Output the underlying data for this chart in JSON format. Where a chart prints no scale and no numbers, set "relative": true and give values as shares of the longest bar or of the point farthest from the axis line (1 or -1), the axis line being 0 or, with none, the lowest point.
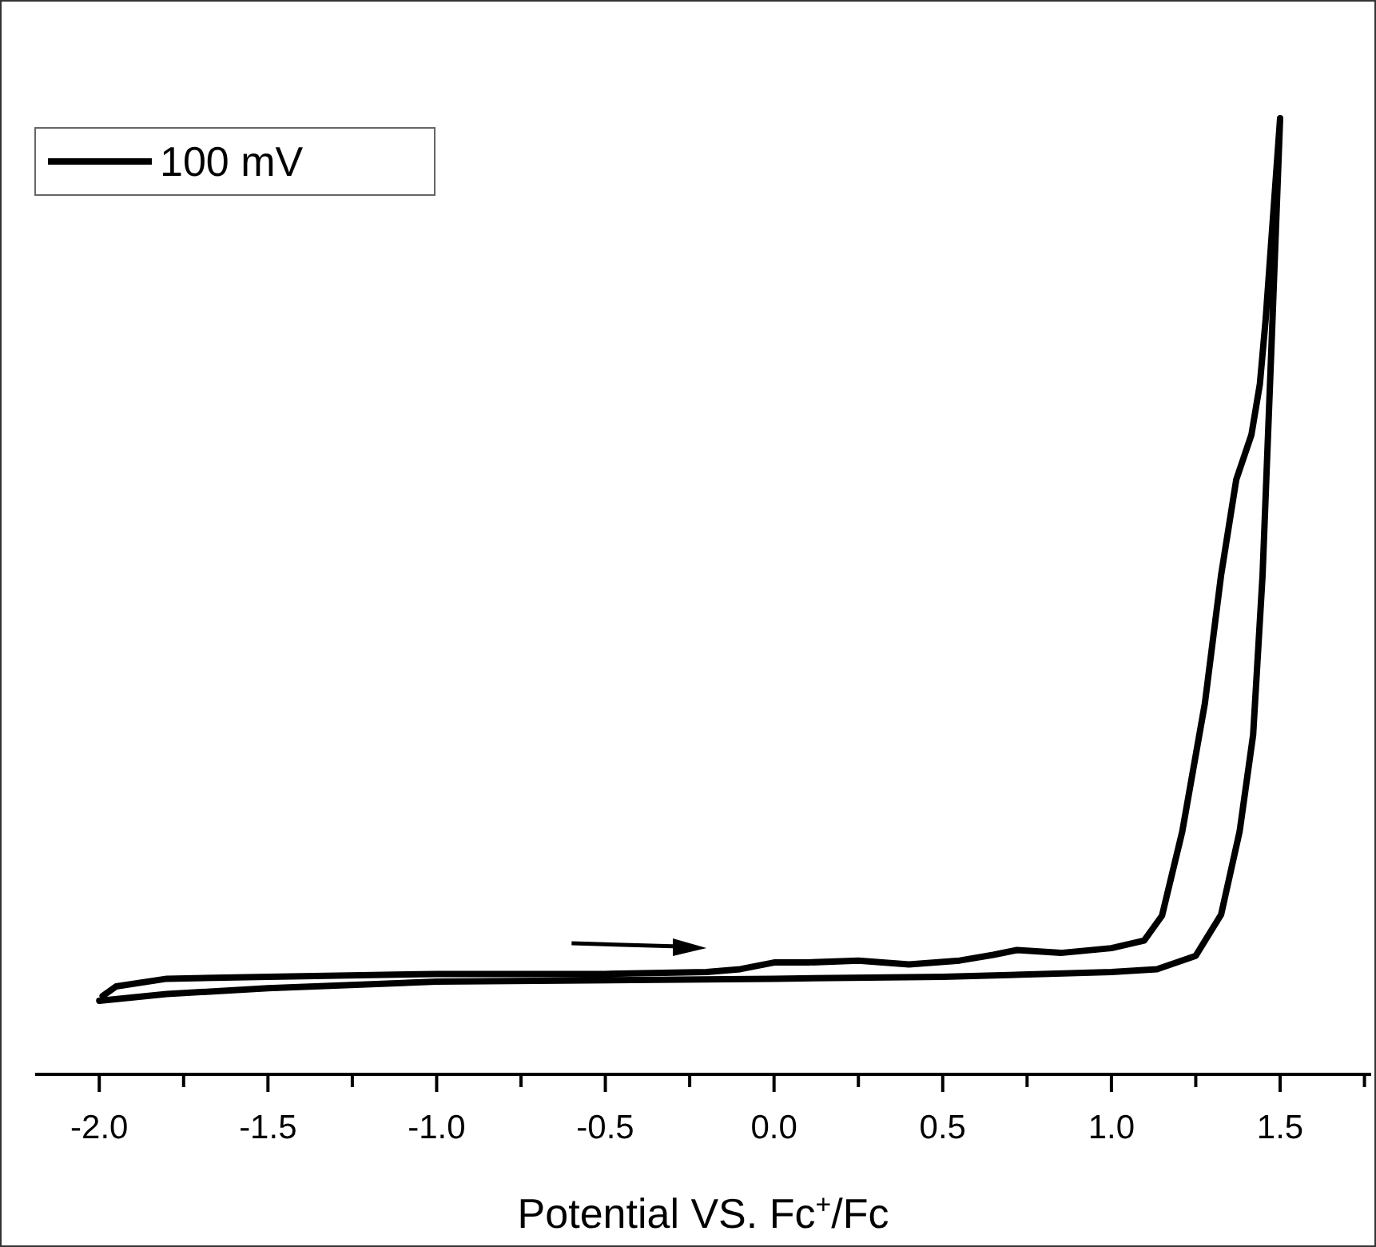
{
  "chart_data": {
    "type": "line",
    "relative": true,
    "xlabel": "Potential VS. Fc$^{+}$/Fc",
    "xlim": [
      -2.19,
      1.77
    ],
    "xticks": [
      {
        "value": -2,
        "label": "-2.0"
      },
      {
        "value": -1.75,
        "label": null
      },
      {
        "value": -1.5,
        "label": "-1.5"
      },
      {
        "value": -1.25,
        "label": null
      },
      {
        "value": -1,
        "label": "-1.0"
      },
      {
        "value": -0.75,
        "label": null
      },
      {
        "value": -0.5,
        "label": "-0.5"
      },
      {
        "value": -0.25,
        "label": null
      },
      {
        "value": 0,
        "label": "0.0"
      },
      {
        "value": 0.25,
        "label": null
      },
      {
        "value": 0.5,
        "label": "0.5"
      },
      {
        "value": 0.75,
        "label": null
      },
      {
        "value": 1,
        "label": "1.0"
      },
      {
        "value": 1.25,
        "label": null
      },
      {
        "value": 1.5,
        "label": "1.5"
      },
      {
        "value": 1.75,
        "label": null
      }
    ],
    "legend": "top left",
    "marker": "none",
    "line_style": "solid",
    "series": [
      {
        "name": "100 mV",
        "color": "#000000",
        "x": [
          -1.99,
          -1.95,
          -1.8,
          -1.5,
          -1.0,
          -0.5,
          -0.2,
          -0.1,
          0.0,
          0.1,
          0.25,
          0.4,
          0.55,
          0.65,
          0.72,
          0.85,
          1.0,
          1.097,
          1.15,
          1.21,
          1.277,
          1.325,
          1.37,
          1.415,
          1.44,
          1.457,
          1.5,
          1.476,
          1.448,
          1.42,
          1.38,
          1.325,
          1.25,
          1.135,
          1.0,
          0.5,
          0.0,
          -1.0,
          -1.5,
          -1.8,
          -2.0
        ],
        "values": [
          0.082,
          0.092,
          0.1,
          0.102,
          0.105,
          0.105,
          0.107,
          0.11,
          0.117,
          0.117,
          0.119,
          0.115,
          0.119,
          0.125,
          0.13,
          0.127,
          0.132,
          0.14,
          0.166,
          0.254,
          0.388,
          0.522,
          0.622,
          0.669,
          0.722,
          0.789,
          1,
          0.776,
          0.522,
          0.355,
          0.254,
          0.167,
          0.124,
          0.11,
          0.107,
          0.102,
          0.1,
          0.097,
          0.09,
          0.084,
          0.077
        ]
      }
    ]
  }
}
